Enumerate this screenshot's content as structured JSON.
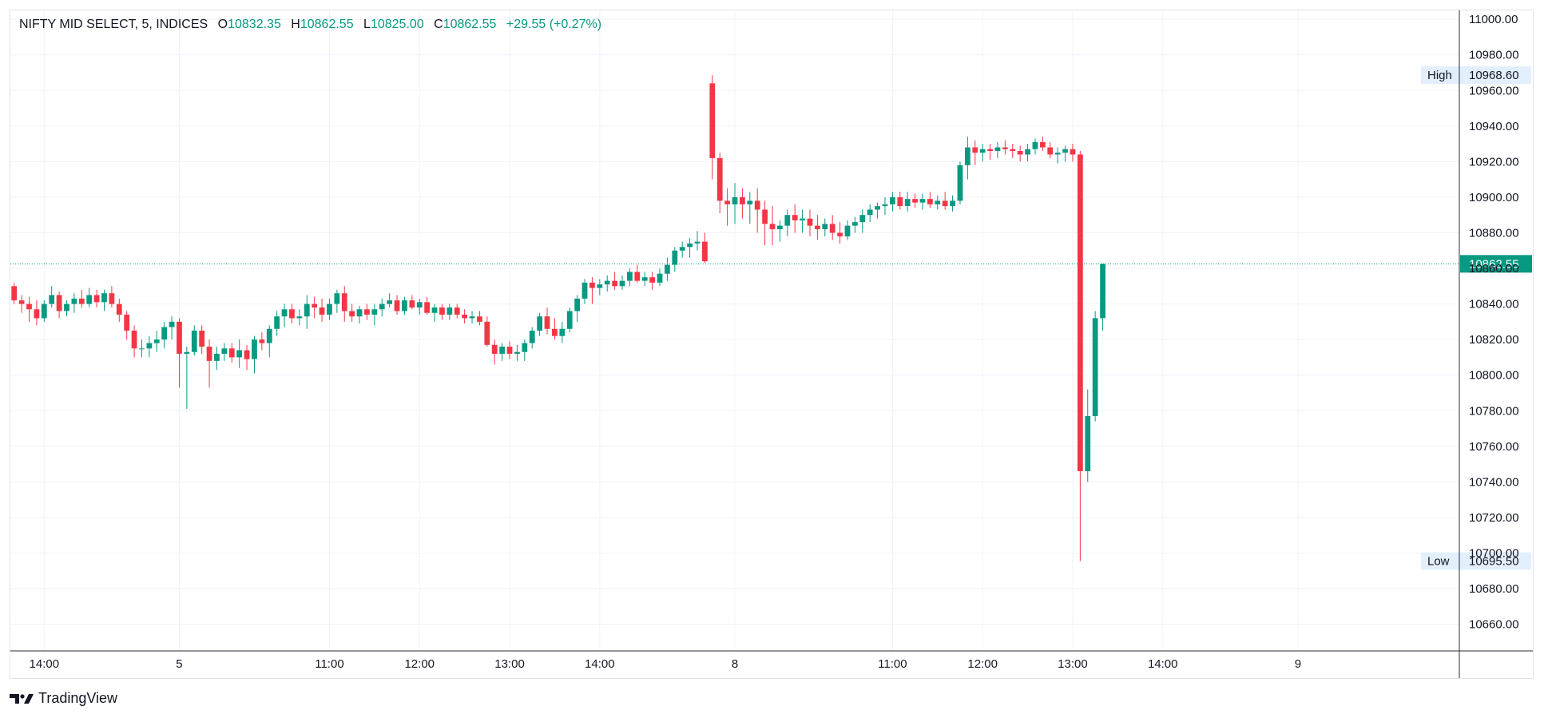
{
  "legend": {
    "symbol": "NIFTY MID SELECT, 5, INDICES",
    "open_label": "O",
    "open": "10832.35",
    "high_label": "H",
    "high": "10862.55",
    "low_label": "L",
    "low": "10825.00",
    "close_label": "C",
    "close": "10862.55",
    "change": "+29.55 (+0.27%)"
  },
  "brand": {
    "name": "TradingView"
  },
  "colors": {
    "up": "#089981",
    "down": "#f23645",
    "grid": "#f0f3fa",
    "axis": "#131722",
    "badge_bg": "#e3effd"
  },
  "chart_data": {
    "type": "candlestick",
    "y_axis": {
      "min": 10645,
      "max": 11005,
      "ticks": [
        "11000.00",
        "10980.00",
        "10960.00",
        "10940.00",
        "10920.00",
        "10900.00",
        "10880.00",
        "10860.00",
        "10840.00",
        "10820.00",
        "10800.00",
        "10780.00",
        "10760.00",
        "10740.00",
        "10720.00",
        "10700.00",
        "10680.00",
        "10660.00"
      ],
      "tick_values": [
        11000,
        10980,
        10960,
        10940,
        10920,
        10900,
        10880,
        10860,
        10840,
        10820,
        10800,
        10780,
        10760,
        10740,
        10720,
        10700,
        10680,
        10660
      ]
    },
    "x_axis": {
      "labels": [
        {
          "text": "14:00",
          "bar": 4
        },
        {
          "text": "5",
          "bar": 22
        },
        {
          "text": "11:00",
          "bar": 42
        },
        {
          "text": "12:00",
          "bar": 54
        },
        {
          "text": "13:00",
          "bar": 66
        },
        {
          "text": "14:00",
          "bar": 78
        },
        {
          "text": "8",
          "bar": 96
        },
        {
          "text": "11:00",
          "bar": 117
        },
        {
          "text": "12:00",
          "bar": 129
        },
        {
          "text": "13:00",
          "bar": 141
        },
        {
          "text": "14:00",
          "bar": 153
        },
        {
          "text": "9",
          "bar": 171
        }
      ],
      "total_bars": 193
    },
    "last_price": {
      "value": 10862.55,
      "label": "10862.55"
    },
    "high_marker": {
      "label": "High",
      "value": 10968.6,
      "text": "10968.60"
    },
    "low_marker": {
      "label": "Low",
      "value": 10695.5,
      "text": "10695.50"
    },
    "candles": [
      [
        10850,
        10852,
        10840,
        10842
      ],
      [
        10842,
        10845,
        10835,
        10840
      ],
      [
        10840,
        10844,
        10830,
        10837
      ],
      [
        10837,
        10842,
        10828,
        10832
      ],
      [
        10832,
        10842,
        10830,
        10840
      ],
      [
        10840,
        10850,
        10838,
        10845
      ],
      [
        10845,
        10847,
        10832,
        10836
      ],
      [
        10836,
        10842,
        10833,
        10840
      ],
      [
        10840,
        10846,
        10835,
        10843
      ],
      [
        10843,
        10848,
        10838,
        10840
      ],
      [
        10840,
        10849,
        10838,
        10845
      ],
      [
        10845,
        10848,
        10838,
        10841
      ],
      [
        10841,
        10848,
        10836,
        10846
      ],
      [
        10846,
        10850,
        10838,
        10840
      ],
      [
        10840,
        10843,
        10830,
        10834
      ],
      [
        10834,
        10836,
        10820,
        10825
      ],
      [
        10825,
        10828,
        10810,
        10815
      ],
      [
        10815,
        10820,
        10810,
        10815
      ],
      [
        10815,
        10822,
        10810,
        10818
      ],
      [
        10818,
        10825,
        10813,
        10820
      ],
      [
        10820,
        10830,
        10815,
        10827
      ],
      [
        10827,
        10833,
        10820,
        10830
      ],
      [
        10830,
        10832,
        10793,
        10812
      ],
      [
        10812,
        10816,
        10781,
        10813
      ],
      [
        10813,
        10828,
        10811,
        10825
      ],
      [
        10825,
        10828,
        10812,
        10816
      ],
      [
        10816,
        10820,
        10793,
        10808
      ],
      [
        10808,
        10816,
        10803,
        10812
      ],
      [
        10812,
        10818,
        10808,
        10815
      ],
      [
        10815,
        10818,
        10807,
        10810
      ],
      [
        10810,
        10820,
        10804,
        10814
      ],
      [
        10814,
        10817,
        10803,
        10809
      ],
      [
        10809,
        10822,
        10801,
        10820
      ],
      [
        10820,
        10824,
        10814,
        10818
      ],
      [
        10818,
        10828,
        10810,
        10826
      ],
      [
        10826,
        10836,
        10822,
        10833
      ],
      [
        10833,
        10840,
        10827,
        10837
      ],
      [
        10837,
        10840,
        10829,
        10832
      ],
      [
        10832,
        10837,
        10828,
        10833
      ],
      [
        10833,
        10845,
        10826,
        10840
      ],
      [
        10840,
        10844,
        10832,
        10838
      ],
      [
        10838,
        10843,
        10830,
        10834
      ],
      [
        10834,
        10843,
        10831,
        10840
      ],
      [
        10840,
        10848,
        10835,
        10846
      ],
      [
        10846,
        10850,
        10830,
        10836
      ],
      [
        10836,
        10840,
        10830,
        10833
      ],
      [
        10833,
        10839,
        10829,
        10837
      ],
      [
        10837,
        10840,
        10831,
        10834
      ],
      [
        10834,
        10840,
        10828,
        10837
      ],
      [
        10837,
        10843,
        10833,
        10840
      ],
      [
        10840,
        10846,
        10838,
        10842
      ],
      [
        10842,
        10845,
        10834,
        10836
      ],
      [
        10836,
        10844,
        10834,
        10842
      ],
      [
        10842,
        10845,
        10837,
        10838
      ],
      [
        10838,
        10843,
        10834,
        10841
      ],
      [
        10841,
        10844,
        10834,
        10835
      ],
      [
        10835,
        10840,
        10830,
        10838
      ],
      [
        10838,
        10840,
        10831,
        10834
      ],
      [
        10834,
        10840,
        10831,
        10838
      ],
      [
        10838,
        10840,
        10832,
        10834
      ],
      [
        10834,
        10837,
        10829,
        10832
      ],
      [
        10832,
        10836,
        10829,
        10833
      ],
      [
        10833,
        10836,
        10828,
        10830
      ],
      [
        10830,
        10833,
        10816,
        10817
      ],
      [
        10817,
        10820,
        10806,
        10812
      ],
      [
        10812,
        10818,
        10808,
        10816
      ],
      [
        10816,
        10819,
        10809,
        10812
      ],
      [
        10812,
        10817,
        10808,
        10813
      ],
      [
        10813,
        10820,
        10808,
        10818
      ],
      [
        10818,
        10827,
        10815,
        10825
      ],
      [
        10825,
        10835,
        10822,
        10833
      ],
      [
        10833,
        10838,
        10823,
        10826
      ],
      [
        10826,
        10832,
        10820,
        10822
      ],
      [
        10822,
        10830,
        10818,
        10826
      ],
      [
        10826,
        10838,
        10824,
        10836
      ],
      [
        10836,
        10845,
        10830,
        10843
      ],
      [
        10843,
        10854,
        10840,
        10852
      ],
      [
        10852,
        10855,
        10840,
        10849
      ],
      [
        10849,
        10854,
        10845,
        10851
      ],
      [
        10851,
        10856,
        10847,
        10853
      ],
      [
        10853,
        10858,
        10848,
        10850
      ],
      [
        10850,
        10856,
        10848,
        10853
      ],
      [
        10853,
        10860,
        10850,
        10858
      ],
      [
        10858,
        10862,
        10852,
        10853
      ],
      [
        10853,
        10858,
        10850,
        10855
      ],
      [
        10855,
        10858,
        10848,
        10852
      ],
      [
        10852,
        10860,
        10850,
        10857
      ],
      [
        10857,
        10866,
        10853,
        10862
      ],
      [
        10862,
        10872,
        10858,
        10870
      ],
      [
        10870,
        10875,
        10866,
        10872
      ],
      [
        10872,
        10877,
        10866,
        10874
      ],
      [
        10874,
        10881,
        10870,
        10875
      ],
      [
        10875,
        10880,
        10863,
        10864
      ],
      [
        10964,
        10968.6,
        10910,
        10922
      ],
      [
        10922,
        10925,
        10891,
        10898
      ],
      [
        10898,
        10905,
        10884,
        10896
      ],
      [
        10896,
        10908,
        10885,
        10900
      ],
      [
        10900,
        10905,
        10888,
        10896
      ],
      [
        10896,
        10903,
        10885,
        10898
      ],
      [
        10898,
        10905,
        10880,
        10893
      ],
      [
        10893,
        10898,
        10873,
        10885
      ],
      [
        10885,
        10895,
        10873,
        10882
      ],
      [
        10882,
        10887,
        10875,
        10884
      ],
      [
        10884,
        10893,
        10878,
        10890
      ],
      [
        10890,
        10896,
        10880,
        10887
      ],
      [
        10887,
        10893,
        10880,
        10888
      ],
      [
        10888,
        10893,
        10878,
        10884
      ],
      [
        10884,
        10890,
        10876,
        10882
      ],
      [
        10882,
        10888,
        10878,
        10885
      ],
      [
        10885,
        10890,
        10876,
        10880
      ],
      [
        10880,
        10886,
        10874,
        10878
      ],
      [
        10878,
        10887,
        10876,
        10884
      ],
      [
        10884,
        10889,
        10880,
        10886
      ],
      [
        10886,
        10893,
        10880,
        10890
      ],
      [
        10890,
        10896,
        10886,
        10893
      ],
      [
        10893,
        10897,
        10888,
        10895
      ],
      [
        10895,
        10900,
        10890,
        10896
      ],
      [
        10896,
        10903,
        10892,
        10900
      ],
      [
        10900,
        10903,
        10893,
        10895
      ],
      [
        10895,
        10903,
        10892,
        10899
      ],
      [
        10899,
        10902,
        10894,
        10897
      ],
      [
        10897,
        10902,
        10893,
        10899
      ],
      [
        10899,
        10903,
        10894,
        10896
      ],
      [
        10896,
        10901,
        10893,
        10898
      ],
      [
        10898,
        10903,
        10893,
        10895
      ],
      [
        10895,
        10901,
        10892,
        10898
      ],
      [
        10898,
        10920,
        10896,
        10918
      ],
      [
        10918,
        10934,
        10910,
        10928
      ],
      [
        10928,
        10932,
        10918,
        10925
      ],
      [
        10925,
        10930,
        10920,
        10927
      ],
      [
        10927,
        10930,
        10921,
        10926
      ],
      [
        10926,
        10931,
        10922,
        10928
      ],
      [
        10928,
        10932,
        10924,
        10927
      ],
      [
        10927,
        10930,
        10922,
        10926
      ],
      [
        10926,
        10929,
        10920,
        10924
      ],
      [
        10924,
        10930,
        10920,
        10927
      ],
      [
        10927,
        10933,
        10924,
        10931
      ],
      [
        10931,
        10934,
        10926,
        10928
      ],
      [
        10928,
        10931,
        10922,
        10924
      ],
      [
        10924,
        10928,
        10919,
        10925
      ],
      [
        10925,
        10929,
        10920,
        10927
      ],
      [
        10927,
        10930,
        10920,
        10924
      ],
      [
        10924,
        10926,
        10695.5,
        10746
      ],
      [
        10746,
        10792,
        10740,
        10777
      ],
      [
        10777,
        10836,
        10774,
        10832
      ],
      [
        10832,
        10862.55,
        10825,
        10862.55
      ]
    ]
  }
}
